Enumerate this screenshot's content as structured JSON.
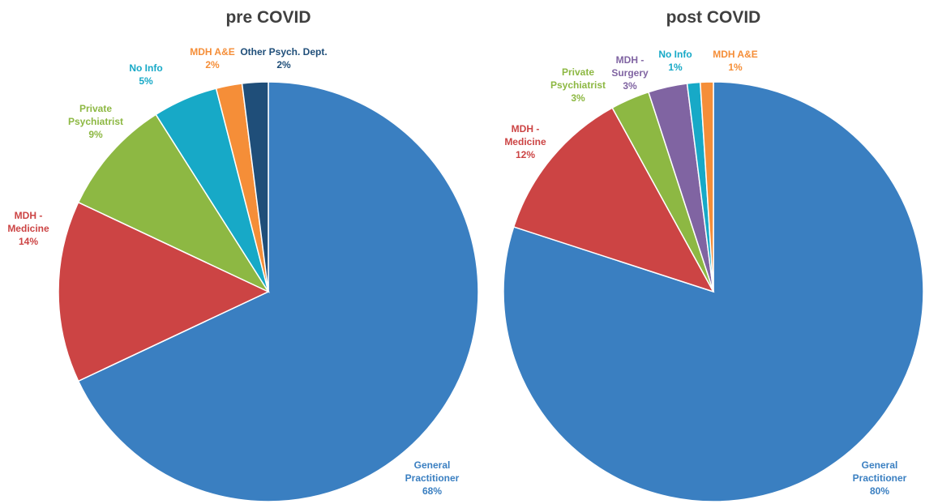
{
  "chart_data": [
    {
      "type": "pie",
      "title": "pre COVID",
      "categories": [
        "General Practitioner",
        "MDH - Medicine",
        "Private Psychiatrist",
        "No Info",
        "MDH A&E",
        "Other Psych. Dept."
      ],
      "values": [
        68,
        14,
        9,
        5,
        2,
        2
      ],
      "value_labels": [
        "68%",
        "14%",
        "9%",
        "5%",
        "2%",
        "2%"
      ],
      "colors": [
        "#3a7fc1",
        "#cc4444",
        "#8db843",
        "#17a9c7",
        "#f58e38",
        "#1f4e79"
      ]
    },
    {
      "type": "pie",
      "title": "post COVID",
      "categories": [
        "General Practitioner",
        "MDH - Medicine",
        "Private Psychiatrist",
        "MDH - Surgery",
        "No Info",
        "MDH A&E"
      ],
      "values": [
        80,
        12,
        3,
        3,
        1,
        1
      ],
      "value_labels": [
        "80%",
        "12%",
        "3%",
        "3%",
        "1%",
        "1%"
      ],
      "colors": [
        "#3a7fc1",
        "#cc4444",
        "#8db843",
        "#8064a2",
        "#17a9c7",
        "#f58e38"
      ]
    }
  ]
}
